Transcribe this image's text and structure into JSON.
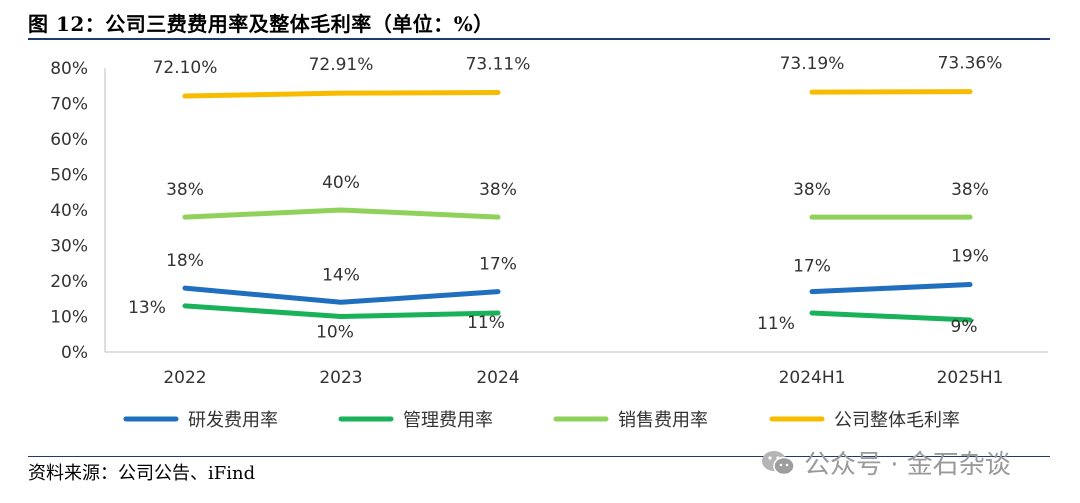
{
  "title": "图 12：公司三费费用率及整体毛利率（单位：%）",
  "source": "资料来源：公司公告、iFind",
  "watermark": "公众号 · 金石杂谈",
  "chart_data": {
    "type": "line",
    "categories": [
      "2022",
      "2023",
      "2024",
      "",
      "2024H1",
      "2025H1"
    ],
    "ylim": [
      0,
      80
    ],
    "yticks": [
      "0%",
      "10%",
      "20%",
      "30%",
      "40%",
      "50%",
      "60%",
      "70%",
      "80%"
    ],
    "grid": false,
    "legend_position": "bottom",
    "series": [
      {
        "name": "研发费用率",
        "color": "#1f6fbe",
        "values": [
          18,
          14,
          17,
          null,
          17,
          19
        ],
        "labels": [
          "18%",
          "14%",
          "17%",
          null,
          "17%",
          "19%"
        ]
      },
      {
        "name": "管理费用率",
        "color": "#19b25a",
        "values": [
          13,
          10,
          11,
          null,
          11,
          9
        ],
        "labels": [
          "13%",
          "10%",
          "11%",
          null,
          "11%",
          "9%"
        ]
      },
      {
        "name": "销售费用率",
        "color": "#8fd15a",
        "values": [
          38,
          40,
          38,
          null,
          38,
          38
        ],
        "labels": [
          "38%",
          "40%",
          "38%",
          null,
          "38%",
          "38%"
        ]
      },
      {
        "name": "公司整体毛利率",
        "color": "#f7bb00",
        "values": [
          72.1,
          72.91,
          73.11,
          null,
          73.19,
          73.36
        ],
        "labels": [
          "72.10%",
          "72.91%",
          "73.11%",
          null,
          "73.19%",
          "73.36%"
        ]
      }
    ]
  }
}
